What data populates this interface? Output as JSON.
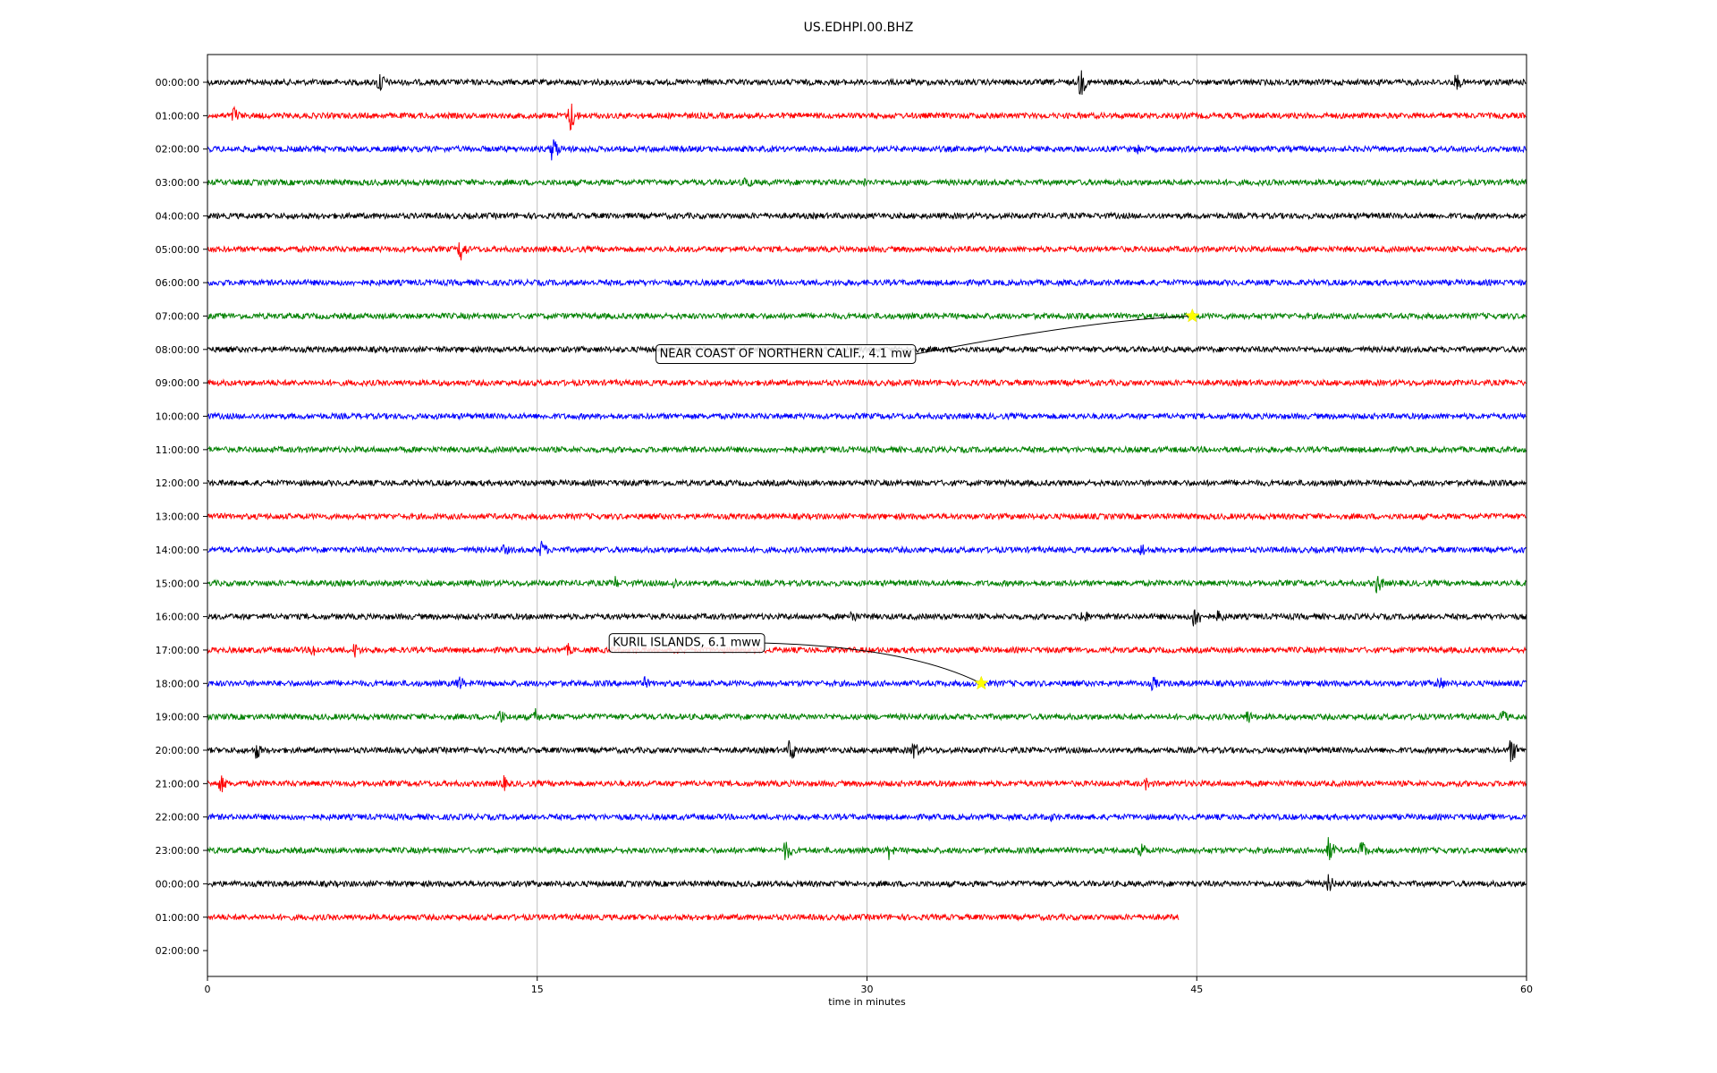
{
  "chart_data": {
    "type": "line",
    "title": "US.EDHPI.00.BHZ",
    "xlabel": "time in minutes",
    "xlim": [
      0,
      60
    ],
    "xticks": [
      0,
      15,
      30,
      45,
      60
    ],
    "xtick_labels": [
      "0",
      "15",
      "30",
      "45",
      "60"
    ],
    "grid": "vertical",
    "row_labels": [
      "00:00:00",
      "01:00:00",
      "02:00:00",
      "03:00:00",
      "04:00:00",
      "05:00:00",
      "06:00:00",
      "07:00:00",
      "08:00:00",
      "09:00:00",
      "10:00:00",
      "11:00:00",
      "12:00:00",
      "13:00:00",
      "14:00:00",
      "15:00:00",
      "16:00:00",
      "17:00:00",
      "18:00:00",
      "19:00:00",
      "20:00:00",
      "21:00:00",
      "22:00:00",
      "23:00:00",
      "00:00:00",
      "01:00:00",
      "02:00:00"
    ],
    "trace_colors": [
      "#000000",
      "#ff0000",
      "#0000ff",
      "#008000"
    ],
    "last_trace_end_minute": 44.2,
    "events": [
      {
        "row": 1,
        "minute": 16.5,
        "amp": 1.0
      },
      {
        "row": 1,
        "minute": 1.2,
        "amp": 0.6
      },
      {
        "row": 0,
        "minute": 7.8,
        "amp": 0.8
      },
      {
        "row": 0,
        "minute": 39.7,
        "amp": 0.9
      },
      {
        "row": 0,
        "minute": 56.8,
        "amp": 0.6
      },
      {
        "row": 2,
        "minute": 15.7,
        "amp": 0.9
      },
      {
        "row": 2,
        "minute": 42.3,
        "amp": 0.4
      },
      {
        "row": 3,
        "minute": 24.5,
        "amp": 0.5
      },
      {
        "row": 3,
        "minute": 29.9,
        "amp": 0.3
      },
      {
        "row": 5,
        "minute": 11.5,
        "amp": 0.8
      },
      {
        "row": 14,
        "minute": 15.2,
        "amp": 0.6
      },
      {
        "row": 14,
        "minute": 13.5,
        "amp": 0.4
      },
      {
        "row": 14,
        "minute": 42.5,
        "amp": 0.5
      },
      {
        "row": 15,
        "minute": 18.5,
        "amp": 0.5
      },
      {
        "row": 15,
        "minute": 21.2,
        "amp": 0.4
      },
      {
        "row": 15,
        "minute": 53.2,
        "amp": 0.7
      },
      {
        "row": 16,
        "minute": 29.3,
        "amp": 0.5
      },
      {
        "row": 16,
        "minute": 39.8,
        "amp": 0.6
      },
      {
        "row": 16,
        "minute": 44.9,
        "amp": 0.9
      },
      {
        "row": 16,
        "minute": 46.0,
        "amp": 0.5
      },
      {
        "row": 17,
        "minute": 4.8,
        "amp": 0.5
      },
      {
        "row": 17,
        "minute": 6.7,
        "amp": 0.5
      },
      {
        "row": 17,
        "minute": 16.4,
        "amp": 0.4
      },
      {
        "row": 17,
        "minute": 21.3,
        "amp": 0.4
      },
      {
        "row": 18,
        "minute": 11.4,
        "amp": 0.6
      },
      {
        "row": 18,
        "minute": 19.9,
        "amp": 0.4
      },
      {
        "row": 18,
        "minute": 43.0,
        "amp": 0.5
      },
      {
        "row": 18,
        "minute": 56.0,
        "amp": 0.6
      },
      {
        "row": 19,
        "minute": 13.3,
        "amp": 0.5
      },
      {
        "row": 19,
        "minute": 14.9,
        "amp": 0.5
      },
      {
        "row": 19,
        "minute": 47.3,
        "amp": 0.5
      },
      {
        "row": 19,
        "minute": 58.9,
        "amp": 0.5
      },
      {
        "row": 20,
        "minute": 2.2,
        "amp": 0.6
      },
      {
        "row": 20,
        "minute": 26.5,
        "amp": 0.8
      },
      {
        "row": 20,
        "minute": 32.1,
        "amp": 0.7
      },
      {
        "row": 20,
        "minute": 59.3,
        "amp": 0.8
      },
      {
        "row": 21,
        "minute": 0.6,
        "amp": 0.6
      },
      {
        "row": 21,
        "minute": 13.4,
        "amp": 0.6
      },
      {
        "row": 21,
        "minute": 42.7,
        "amp": 0.4
      },
      {
        "row": 22,
        "minute": 38.4,
        "amp": 0.3
      },
      {
        "row": 23,
        "minute": 26.3,
        "amp": 0.7
      },
      {
        "row": 23,
        "minute": 31.0,
        "amp": 0.5
      },
      {
        "row": 23,
        "minute": 42.4,
        "amp": 0.7
      },
      {
        "row": 23,
        "minute": 51.0,
        "amp": 0.8
      },
      {
        "row": 23,
        "minute": 52.5,
        "amp": 0.7
      },
      {
        "row": 24,
        "minute": 51.0,
        "amp": 0.6
      },
      {
        "row": 24,
        "minute": 50.0,
        "amp": 0.4
      }
    ],
    "annotations": [
      {
        "text": "NEAR COAST OF NORTHERN CALIF., 4.1 mw",
        "row": 7,
        "minute": 44.8,
        "label_row": 8.1,
        "label_minute": 26.3
      },
      {
        "text": "KURIL ISLANDS, 6.1 mww",
        "row": 18,
        "minute": 35.2,
        "label_row": 16.75,
        "label_minute": 21.8
      }
    ]
  }
}
